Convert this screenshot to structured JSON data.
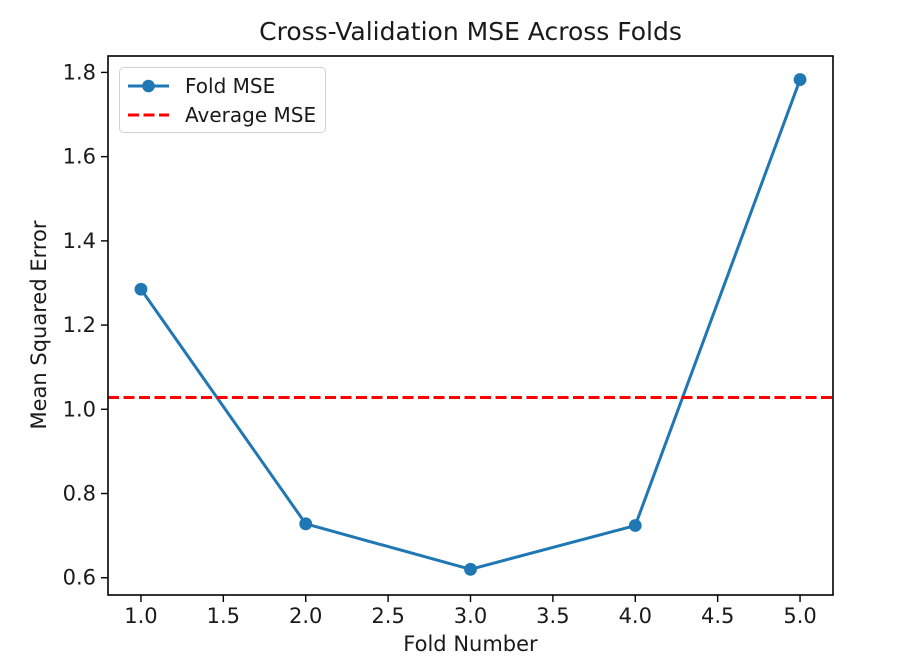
{
  "chart_data": {
    "type": "line",
    "title": "Cross-Validation MSE Across Folds",
    "xlabel": "Fold Number",
    "ylabel": "Mean Squared Error",
    "xlim": [
      0.8,
      5.2
    ],
    "ylim": [
      0.559,
      1.839
    ],
    "grid": false,
    "legend_position": "upper left",
    "x_ticks": {
      "values": [
        1.0,
        1.5,
        2.0,
        2.5,
        3.0,
        3.5,
        4.0,
        4.5,
        5.0
      ],
      "labels": [
        "1.0",
        "1.5",
        "2.0",
        "2.5",
        "3.0",
        "3.5",
        "4.0",
        "4.5",
        "5.0"
      ]
    },
    "y_ticks": {
      "values": [
        0.6,
        0.8,
        1.0,
        1.2,
        1.4,
        1.6,
        1.8
      ],
      "labels": [
        "0.6",
        "0.8",
        "1.0",
        "1.2",
        "1.4",
        "1.6",
        "1.8"
      ]
    },
    "series": [
      {
        "name": "Fold MSE",
        "type": "line",
        "marker": "circle",
        "color": "#1f77b4",
        "x": [
          1,
          2,
          3,
          4,
          5
        ],
        "y": [
          1.285,
          0.728,
          0.62,
          0.724,
          1.783
        ]
      },
      {
        "name": "Average MSE",
        "type": "hline",
        "linestyle": "dashed",
        "color": "#ff0000",
        "y": 1.028
      }
    ],
    "colors": {
      "axis": "#000000",
      "text": "#1a1a1a",
      "legend_border": "#d2d2d2"
    }
  }
}
